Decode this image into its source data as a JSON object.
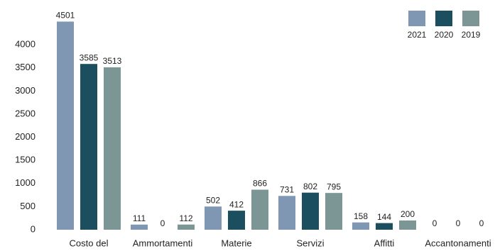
{
  "chart_data": {
    "type": "bar",
    "categories": [
      "Costo del",
      "Ammortamenti",
      "Materie",
      "Servizi",
      "Affitti",
      "Accantonamenti"
    ],
    "series": [
      {
        "name": "2021",
        "color": "#7f97b3",
        "values": [
          4501,
          111,
          502,
          731,
          158,
          0
        ]
      },
      {
        "name": "2020",
        "color": "#1b4f5f",
        "values": [
          3585,
          0,
          412,
          802,
          144,
          0
        ]
      },
      {
        "name": "2019",
        "color": "#7c9595",
        "values": [
          3513,
          112,
          866,
          795,
          200,
          0
        ]
      }
    ],
    "ylim": [
      0,
      4600
    ],
    "yticks": [
      0,
      500,
      1000,
      1500,
      2000,
      2500,
      3000,
      3500,
      4000
    ],
    "grid": false,
    "legend": "top-right"
  }
}
